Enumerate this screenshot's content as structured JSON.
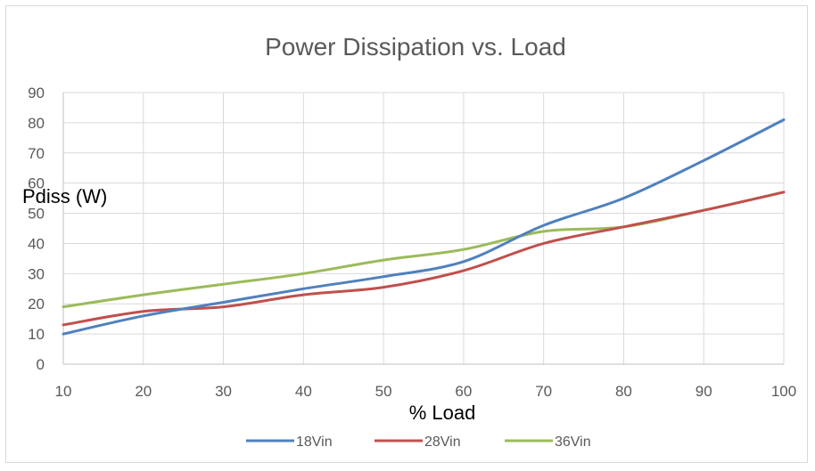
{
  "chart_data": {
    "type": "line",
    "title": "Power Dissipation vs. Load",
    "xlabel": "% Load",
    "ylabel": "Pdiss (W)",
    "categories": [
      10,
      20,
      30,
      40,
      50,
      60,
      70,
      80,
      90,
      100
    ],
    "x_ticks": [
      "10",
      "20",
      "30",
      "40",
      "50",
      "60",
      "70",
      "80",
      "90",
      "100"
    ],
    "y_ticks": [
      "0",
      "10",
      "20",
      "30",
      "40",
      "50",
      "60",
      "70",
      "80",
      "90"
    ],
    "ylim": [
      0,
      90
    ],
    "grid": true,
    "legend_position": "bottom",
    "smooth": true,
    "series": [
      {
        "name": "18Vin",
        "color": "#4f81bd",
        "values": [
          10,
          16,
          20.5,
          25,
          29,
          34,
          46,
          55,
          67.5,
          81
        ]
      },
      {
        "name": "28Vin",
        "color": "#c0504d",
        "values": [
          13,
          17.5,
          19,
          23,
          25.5,
          31,
          40,
          45.5,
          51,
          57
        ]
      },
      {
        "name": "36Vin",
        "color": "#9bbb59",
        "values": [
          19,
          23,
          26.5,
          30,
          34.5,
          38,
          44,
          45.5,
          51,
          57
        ]
      }
    ]
  }
}
